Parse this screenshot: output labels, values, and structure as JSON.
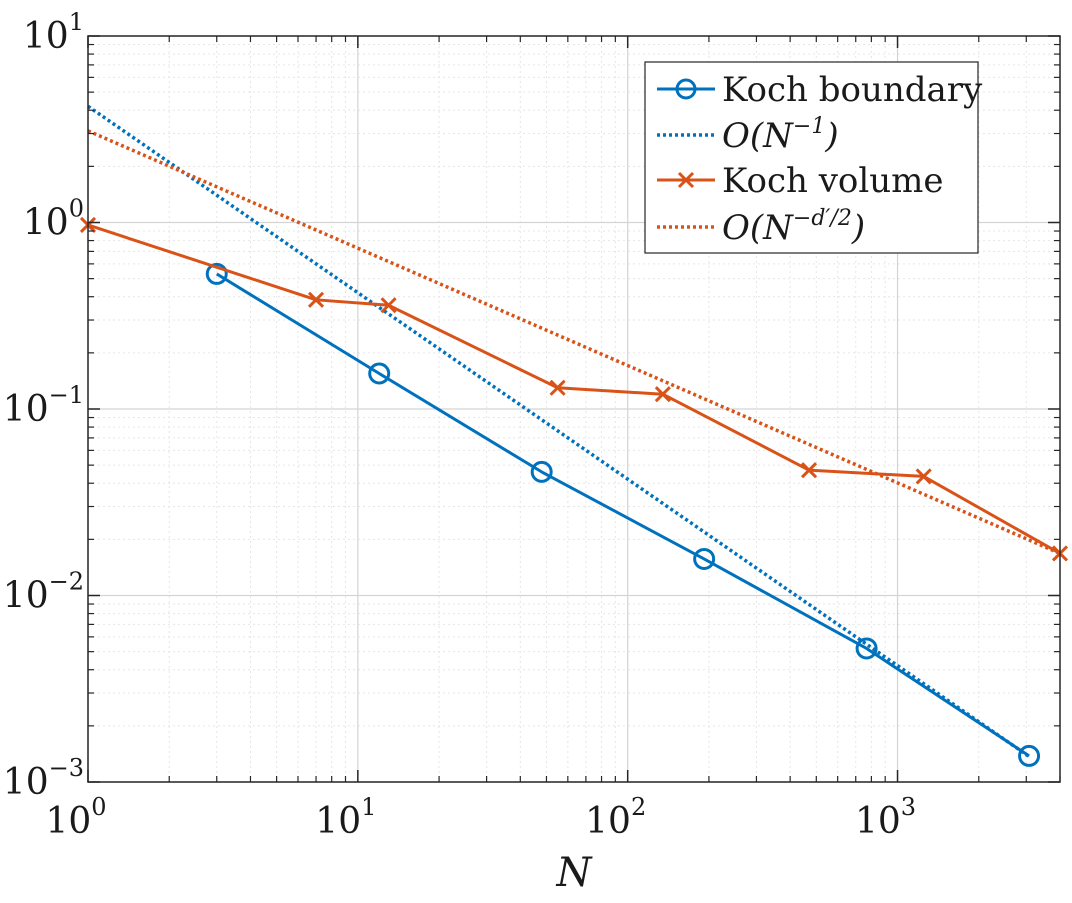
{
  "chart_data": {
    "type": "line",
    "title": "",
    "xlabel": "N",
    "ylabel": "",
    "xscale": "log",
    "yscale": "log",
    "xlim": [
      1,
      4000
    ],
    "ylim": [
      0.001,
      10
    ],
    "grid": true,
    "legend_position": "top-right",
    "x_ticks": [
      {
        "base": "10",
        "exp": "0",
        "value": 1
      },
      {
        "base": "10",
        "exp": "1",
        "value": 10
      },
      {
        "base": "10",
        "exp": "2",
        "value": 100
      },
      {
        "base": "10",
        "exp": "3",
        "value": 1000
      }
    ],
    "y_ticks": [
      {
        "base": "10",
        "exp": "−3",
        "value": 0.001
      },
      {
        "base": "10",
        "exp": "−2",
        "value": 0.01
      },
      {
        "base": "10",
        "exp": "−1",
        "value": 0.1
      },
      {
        "base": "10",
        "exp": "0",
        "value": 1
      },
      {
        "base": "10",
        "exp": "1",
        "value": 10
      }
    ],
    "series": [
      {
        "name": "Koch boundary",
        "color": "#0072BD",
        "style": "solid",
        "marker": "circle",
        "x": [
          3,
          12,
          48,
          192,
          768,
          3072
        ],
        "y": [
          0.53,
          0.155,
          0.046,
          0.0157,
          0.0052,
          0.00138
        ]
      },
      {
        "name": "O(N^-1)",
        "legend_parts": [
          "O(N",
          "−1",
          ")"
        ],
        "color": "#0072BD",
        "style": "dotted",
        "marker": "none",
        "x": [
          1,
          3072
        ],
        "y": [
          4.2,
          0.00137
        ]
      },
      {
        "name": "Koch volume",
        "color": "#D95319",
        "style": "solid",
        "marker": "x",
        "x": [
          1,
          7,
          13,
          55,
          135,
          470,
          1250,
          4000
        ],
        "y": [
          0.97,
          0.385,
          0.36,
          0.13,
          0.12,
          0.047,
          0.0435,
          0.0168
        ]
      },
      {
        "name": "O(N^-d'/2)",
        "legend_parts": [
          "O(N",
          "−d′/2",
          ")"
        ],
        "color": "#D95319",
        "style": "dotted",
        "marker": "none",
        "x": [
          1,
          4000
        ],
        "y": [
          3.1,
          0.0168
        ]
      }
    ]
  }
}
